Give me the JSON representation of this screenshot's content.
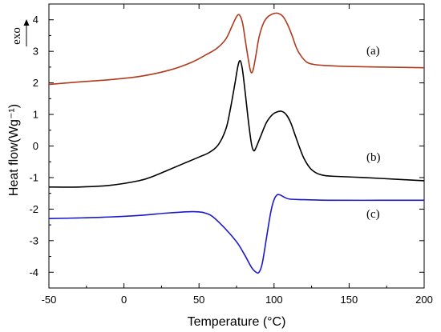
{
  "chart_data": {
    "type": "line",
    "xlabel": "Temperature (°C)",
    "ylabel": "Heat flow(Wg⁻¹)",
    "xlim": [
      -50,
      200
    ],
    "ylim": [
      -4.5,
      4.5
    ],
    "xticks": [
      -50,
      0,
      50,
      100,
      150,
      200
    ],
    "yticks": [
      -4,
      -3,
      -2,
      -1,
      0,
      1,
      2,
      3,
      4
    ],
    "grid": false,
    "annotation": "exo",
    "series": [
      {
        "name": "(a)",
        "color": "#b03a1e",
        "x": [
          -50,
          -30,
          -10,
          10,
          30,
          45,
          55,
          62,
          68,
          72,
          75,
          77,
          79,
          81,
          83,
          84.5,
          86,
          88,
          90,
          93,
          96,
          100,
          103,
          106,
          109,
          112,
          115,
          118,
          122,
          127,
          135,
          150,
          175,
          200
        ],
        "y": [
          1.95,
          2.03,
          2.1,
          2.2,
          2.4,
          2.65,
          2.9,
          3.1,
          3.4,
          3.8,
          4.1,
          4.15,
          3.9,
          3.3,
          2.7,
          2.35,
          2.4,
          2.9,
          3.45,
          3.9,
          4.1,
          4.2,
          4.2,
          4.1,
          3.85,
          3.5,
          3.1,
          2.85,
          2.65,
          2.58,
          2.55,
          2.52,
          2.5,
          2.48
        ]
      },
      {
        "name": "(b)",
        "color": "#000000",
        "x": [
          -50,
          -30,
          -10,
          10,
          20,
          30,
          40,
          50,
          57,
          63,
          68,
          71,
          74,
          76,
          77.5,
          79,
          81,
          83,
          85,
          86.5,
          88,
          91,
          95,
          99,
          102,
          105,
          108,
          111,
          114,
          117,
          120,
          124,
          128,
          133,
          140,
          160,
          180,
          200
        ],
        "y": [
          -1.3,
          -1.3,
          -1.25,
          -1.1,
          -0.95,
          -0.75,
          -0.55,
          -0.35,
          -0.2,
          0.05,
          0.55,
          1.2,
          2.0,
          2.55,
          2.7,
          2.4,
          1.6,
          0.75,
          0.05,
          -0.15,
          -0.05,
          0.3,
          0.75,
          1.0,
          1.08,
          1.1,
          1.0,
          0.75,
          0.35,
          -0.05,
          -0.4,
          -0.7,
          -0.85,
          -0.93,
          -0.96,
          -1.0,
          -1.05,
          -1.1
        ]
      },
      {
        "name": "(c)",
        "color": "#1a1acc",
        "x": [
          -50,
          -30,
          -10,
          10,
          30,
          45,
          52,
          58,
          64,
          70,
          76,
          81,
          85,
          88,
          90,
          92,
          94,
          96,
          98,
          100,
          102,
          104,
          106,
          110,
          120,
          140,
          170,
          200
        ],
        "y": [
          -2.3,
          -2.28,
          -2.25,
          -2.2,
          -2.12,
          -2.08,
          -2.1,
          -2.2,
          -2.45,
          -2.75,
          -3.1,
          -3.5,
          -3.85,
          -4.0,
          -4.0,
          -3.75,
          -3.2,
          -2.6,
          -2.05,
          -1.7,
          -1.55,
          -1.55,
          -1.6,
          -1.68,
          -1.7,
          -1.72,
          -1.72,
          -1.72
        ]
      }
    ]
  }
}
